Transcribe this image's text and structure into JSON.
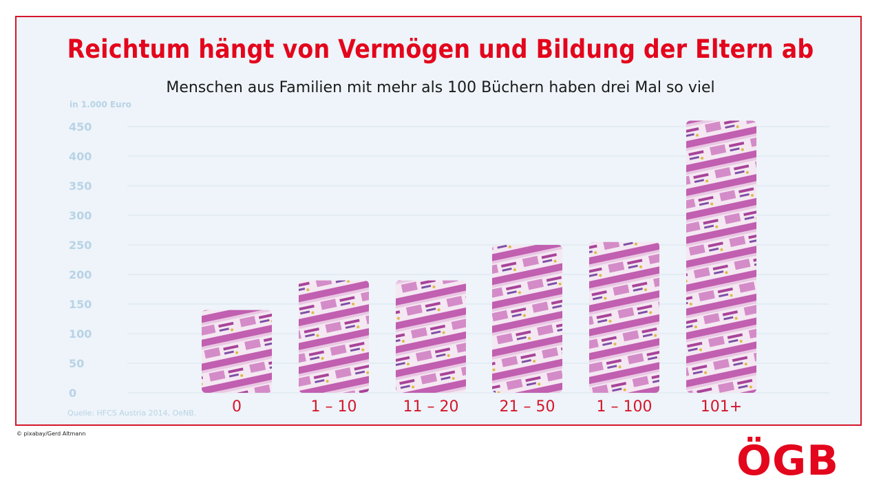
{
  "header": {
    "title": "Reichtum hängt von Vermögen und Bildung der Eltern ab",
    "subtitle": "Menschen aus Familien mit mehr als 100 Büchern haben drei Mal  so viel"
  },
  "chart_data": {
    "type": "bar",
    "unit_label": "in 1.000 Euro",
    "categories": [
      "0",
      "1 – 10",
      "11 – 20",
      "21 – 50",
      "1 – 100",
      "101+"
    ],
    "values": [
      140,
      190,
      190,
      250,
      255,
      460
    ],
    "ylim": [
      0,
      450
    ],
    "yticks": [
      0,
      50,
      100,
      150,
      200,
      250,
      300,
      350,
      400,
      450
    ],
    "grid": true,
    "bar_fill": "banknote-pattern",
    "colors": {
      "bar_main": "#c86ab8",
      "bar_light": "#f3e6f1",
      "axis_text": "#b8d3e6",
      "category_text": "#d5152b"
    }
  },
  "footer": {
    "source": "Quelle: HFCS Austria 2014, OeNB.",
    "credit": "© pixabay/Gerd Altmann",
    "logo_text": "ÖGB"
  }
}
